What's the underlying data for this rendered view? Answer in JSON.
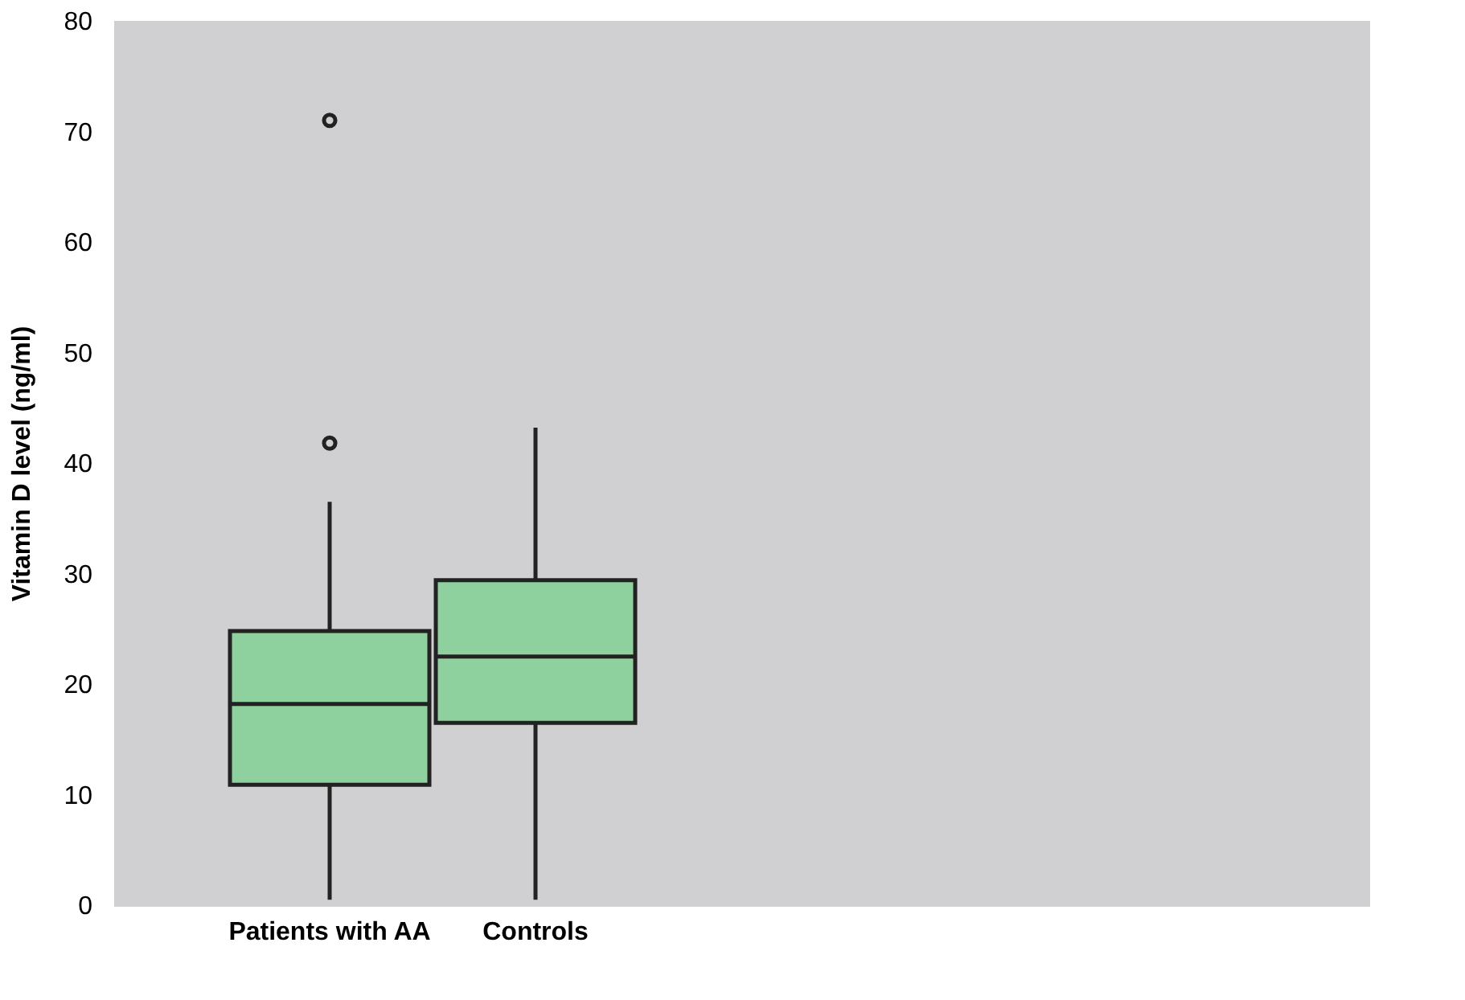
{
  "chart_data": {
    "type": "box",
    "ylabel": "Vitamin D level (ng/ml)",
    "categories": [
      "Patients with AA",
      "Controls"
    ],
    "boxes": [
      {
        "low": 0.5,
        "q1": 10.9,
        "median": 18.2,
        "q3": 24.8,
        "high": 36.5,
        "outliers": [
          41.8,
          71
        ]
      },
      {
        "low": 0.5,
        "q1": 16.5,
        "median": 22.5,
        "q3": 29.4,
        "high": 43.2
      }
    ],
    "color": "#8fd19e",
    "ylim": [
      0,
      80
    ],
    "yticks": [
      0,
      10,
      20,
      30,
      40,
      50,
      60,
      70,
      80
    ],
    "grid": false
  }
}
